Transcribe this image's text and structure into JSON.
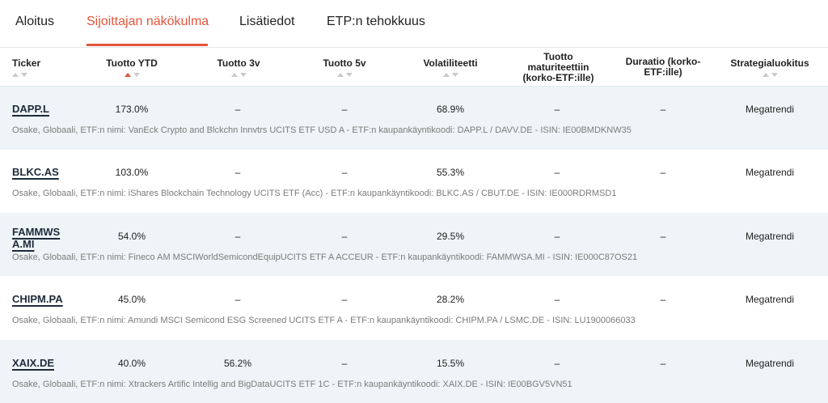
{
  "tabs": [
    {
      "label": "Aloitus",
      "active": false
    },
    {
      "label": "Sijoittajan näkökulma",
      "active": true
    },
    {
      "label": "Lisätiedot",
      "active": false
    },
    {
      "label": "ETP:n tehokkuus",
      "active": false
    }
  ],
  "columns": [
    {
      "label": "Ticker"
    },
    {
      "label": "Tuotto YTD",
      "sorted": "desc"
    },
    {
      "label": "Tuotto 3v"
    },
    {
      "label": "Tuotto 5v"
    },
    {
      "label": "Volatiliteetti"
    },
    {
      "label": "Tuotto maturiteettiin (korko-ETF:ille)"
    },
    {
      "label": "Duraatio (korko-ETF:ille)"
    },
    {
      "label": "Strategialuokitus"
    }
  ],
  "rows": [
    {
      "ticker": "DAPP.L",
      "ytd": "173.0%",
      "r3": "–",
      "r5": "–",
      "vol": "68.9%",
      "ytm": "–",
      "dur": "–",
      "strategy": "Megatrendi",
      "desc": "Osake, Globaali, ETF:n nimi: VanEck Crypto and Blckchn Innvtrs UCITS ETF USD A - ETF:n kaupankäyntikoodi: DAPP.L / DAVV.DE - ISIN: IE00BMDKNW35"
    },
    {
      "ticker": "BLKC.AS",
      "ytd": "103.0%",
      "r3": "–",
      "r5": "–",
      "vol": "55.3%",
      "ytm": "–",
      "dur": "–",
      "strategy": "Megatrendi",
      "desc": "Osake, Globaali, ETF:n nimi: iShares Blockchain Technology UCITS ETF (Acc) - ETF:n kaupankäyntikoodi: BLKC.AS / CBUT.DE - ISIN: IE000RDRMSD1"
    },
    {
      "ticker": "FAMMWSA.MI",
      "ytd": "54.0%",
      "r3": "–",
      "r5": "–",
      "vol": "29.5%",
      "ytm": "–",
      "dur": "–",
      "strategy": "Megatrendi",
      "desc": "Osake, Globaali, ETF:n nimi: Fineco AM MSCIWorldSemicondEquipUCITS ETF A ACCEUR - ETF:n kaupankäyntikoodi: FAMMWSA.MI - ISIN: IE000C87OS21"
    },
    {
      "ticker": "CHIPM.PA",
      "ytd": "45.0%",
      "r3": "–",
      "r5": "–",
      "vol": "28.2%",
      "ytm": "–",
      "dur": "–",
      "strategy": "Megatrendi",
      "desc": "Osake, Globaali, ETF:n nimi: Amundi MSCI Semicond ESG Screened UCITS ETF A - ETF:n kaupankäyntikoodi: CHIPM.PA / LSMC.DE - ISIN: LU1900066033"
    },
    {
      "ticker": "XAIX.DE",
      "ytd": "40.0%",
      "r3": "56.2%",
      "r5": "–",
      "vol": "15.5%",
      "ytm": "–",
      "dur": "–",
      "strategy": "Megatrendi",
      "desc": "Osake, Globaali, ETF:n nimi: Xtrackers Artific Intellig and BigDataUCITS ETF 1C - ETF:n kaupankäyntikoodi: XAIX.DE - ISIN: IE00BGV5VN51"
    }
  ],
  "colors": {
    "accent": "#e4553b",
    "row_alt": "#eef4f7",
    "desc_text": "#7b7b7b"
  }
}
